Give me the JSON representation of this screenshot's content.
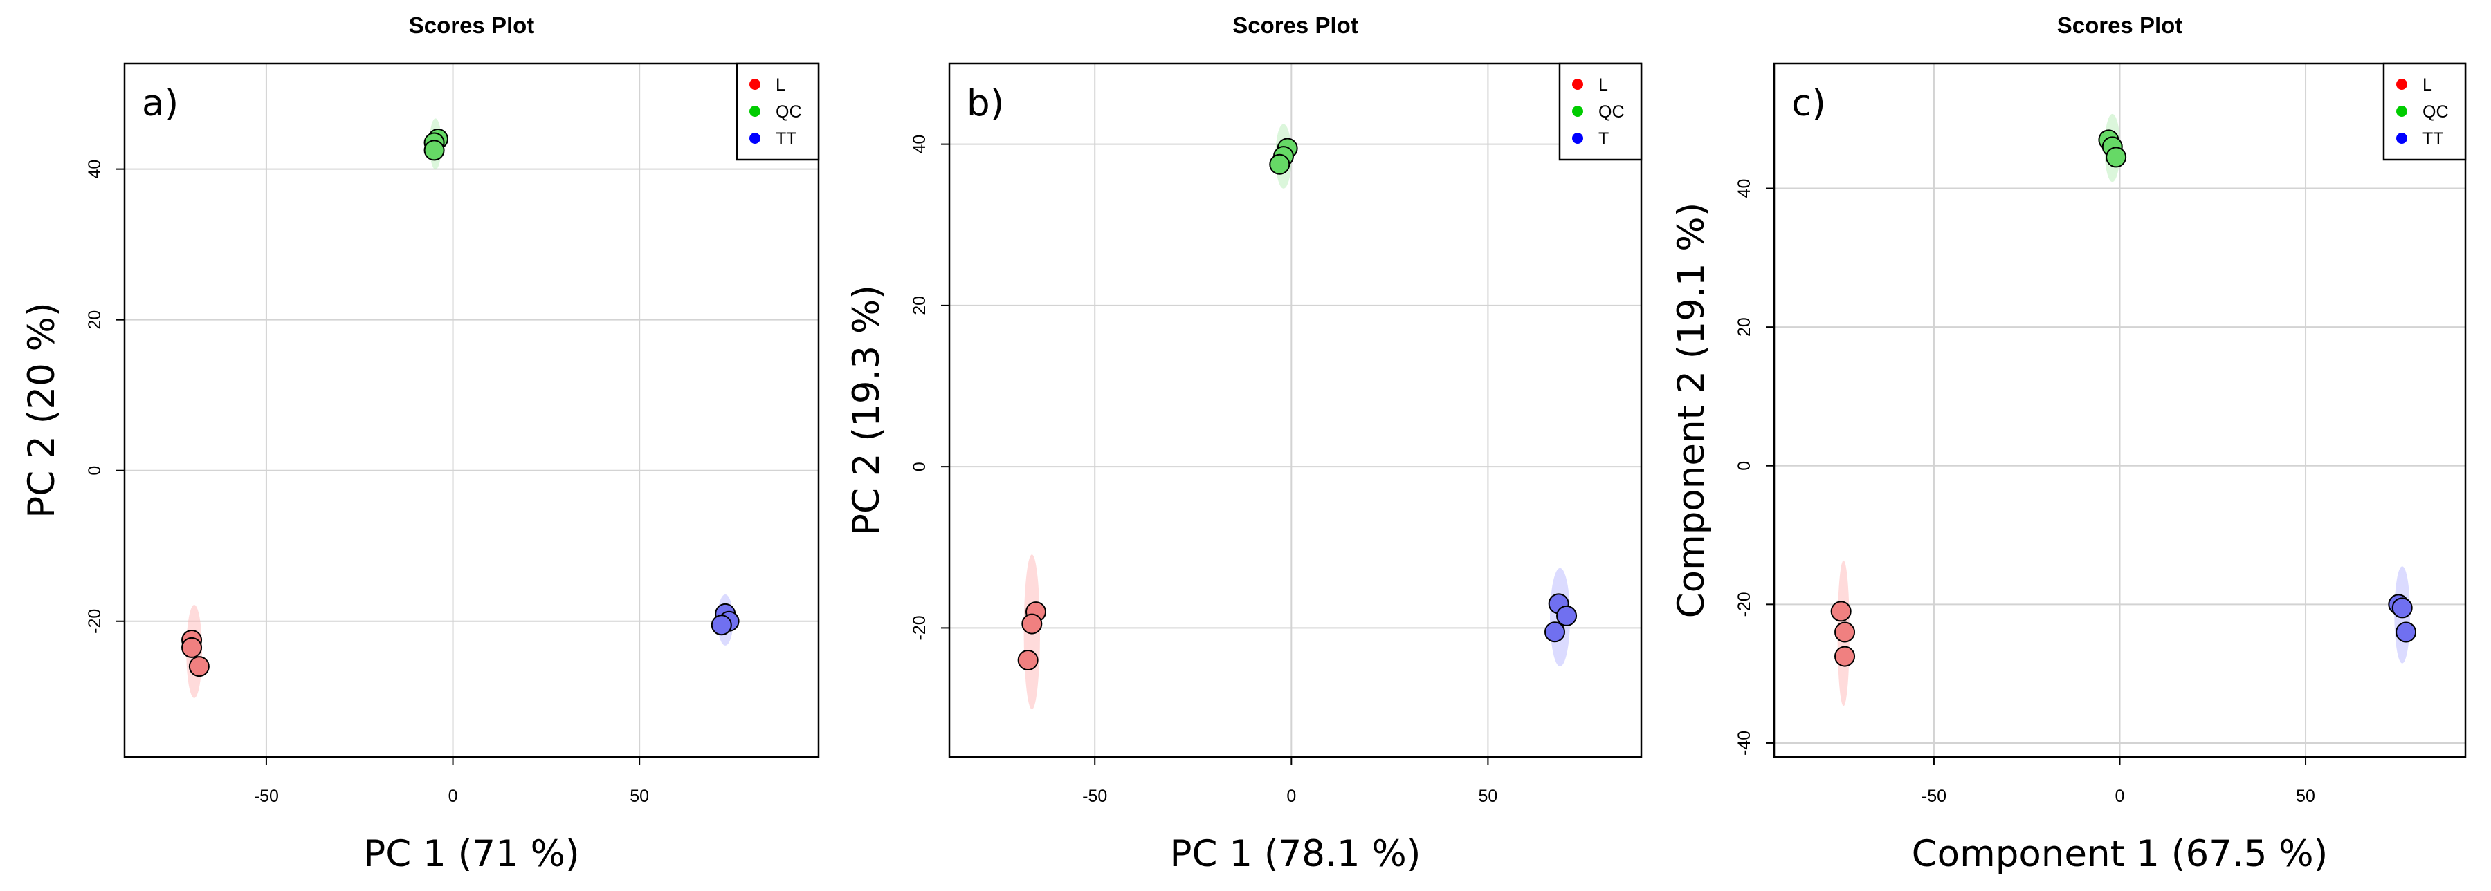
{
  "chart_data": [
    {
      "type": "scatter",
      "title": "Scores Plot",
      "panel_label": "a)",
      "xlabel": "PC 1 (71 %)",
      "ylabel": "PC 2 (20 %)",
      "xlim": [
        -88,
        98
      ],
      "ylim": [
        -38,
        54
      ],
      "xticks": [
        -50,
        0,
        50
      ],
      "xtick_labels": [
        "-50",
        "0",
        "50"
      ],
      "yticks": [
        -20,
        0,
        20,
        40
      ],
      "ytick_labels": [
        "-20",
        "0",
        "20",
        "40"
      ],
      "grid": true,
      "legend_position": "top-right",
      "series": [
        {
          "name": "L",
          "color": "#ff0000",
          "fill": "#f08080",
          "ellipse_color": "#ffb0b0",
          "x": [
            -70,
            -70,
            -68
          ],
          "y": [
            -22.5,
            -23.5,
            -26
          ]
        },
        {
          "name": "QC",
          "color": "#00cc00",
          "fill": "#66d966",
          "ellipse_color": "#b0ecb0",
          "x": [
            -4,
            -5,
            -5
          ],
          "y": [
            44,
            43.5,
            42.5
          ]
        },
        {
          "name": "TT",
          "color": "#0000ff",
          "fill": "#7070f0",
          "ellipse_color": "#b0b0ff",
          "x": [
            73,
            74,
            72
          ],
          "y": [
            -19,
            -20,
            -20.5
          ]
        }
      ]
    },
    {
      "type": "scatter",
      "title": "Scores Plot",
      "panel_label": "b)",
      "xlabel": "PC 1 (78.1 %)",
      "ylabel": "PC 2 (19.3 %)",
      "xlim": [
        -87,
        89
      ],
      "ylim": [
        -36,
        50
      ],
      "xticks": [
        -50,
        0,
        50
      ],
      "xtick_labels": [
        "-50",
        "0",
        "50"
      ],
      "yticks": [
        -20,
        0,
        20,
        40
      ],
      "ytick_labels": [
        "-20",
        "0",
        "20",
        "40"
      ],
      "grid": true,
      "legend_position": "top-right",
      "series": [
        {
          "name": "L",
          "color": "#ff0000",
          "fill": "#f08080",
          "ellipse_color": "#ffb0b0",
          "x": [
            -65,
            -66,
            -67
          ],
          "y": [
            -18,
            -19.5,
            -24
          ]
        },
        {
          "name": "QC",
          "color": "#00cc00",
          "fill": "#66d966",
          "ellipse_color": "#b0ecb0",
          "x": [
            -1,
            -2,
            -3
          ],
          "y": [
            39.5,
            38.5,
            37.5
          ]
        },
        {
          "name": "T",
          "color": "#0000ff",
          "fill": "#7070f0",
          "ellipse_color": "#b0b0ff",
          "x": [
            68,
            70,
            67
          ],
          "y": [
            -17,
            -18.5,
            -20.5
          ]
        }
      ]
    },
    {
      "type": "scatter",
      "title": "Scores Plot",
      "panel_label": "c)",
      "xlabel": "Component 1 (67.5 %)",
      "ylabel": "Component 2 (19.1 %)",
      "xlim": [
        -93,
        93
      ],
      "ylim": [
        -42,
        58
      ],
      "xticks": [
        -50,
        0,
        50
      ],
      "xtick_labels": [
        "-50",
        "0",
        "50"
      ],
      "yticks": [
        -40,
        -20,
        0,
        20,
        40
      ],
      "ytick_labels": [
        "-40",
        "-20",
        "0",
        "20",
        "40"
      ],
      "grid": true,
      "legend_position": "top-right",
      "series": [
        {
          "name": "L",
          "color": "#ff0000",
          "fill": "#f08080",
          "ellipse_color": "#ffb0b0",
          "x": [
            -75,
            -74,
            -74
          ],
          "y": [
            -21,
            -24,
            -27.5
          ]
        },
        {
          "name": "QC",
          "color": "#00cc00",
          "fill": "#66d966",
          "ellipse_color": "#b0ecb0",
          "x": [
            -3,
            -2,
            -1
          ],
          "y": [
            47,
            46,
            44.5
          ]
        },
        {
          "name": "TT",
          "color": "#0000ff",
          "fill": "#7070f0",
          "ellipse_color": "#b0b0ff",
          "x": [
            75,
            76,
            77
          ],
          "y": [
            -20,
            -20.5,
            -24
          ]
        }
      ]
    }
  ]
}
